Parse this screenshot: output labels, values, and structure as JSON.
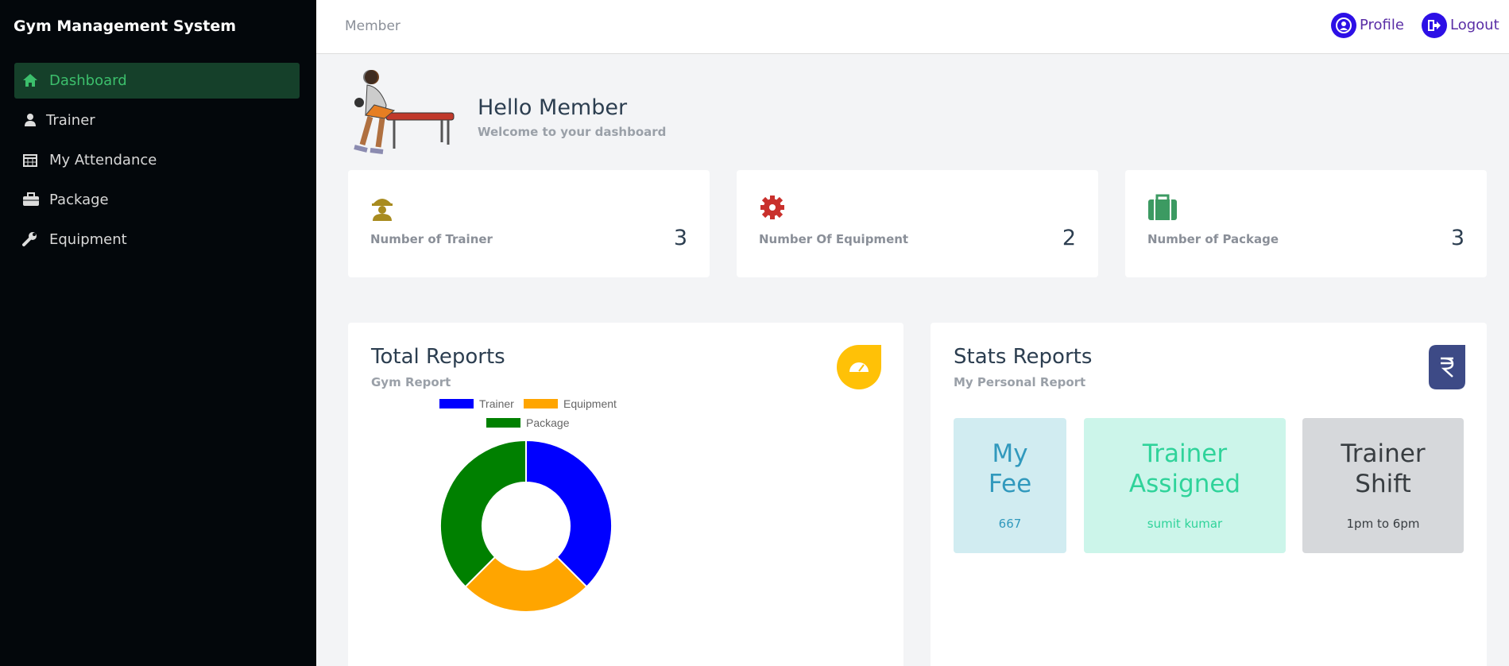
{
  "sidebar": {
    "title": "Gym Management System",
    "menu": [
      "Dashboard",
      "Trainer",
      "My Attendance",
      "Package",
      "Equipment"
    ]
  },
  "topbar": {
    "page": "Member",
    "links": [
      "Profile",
      "Logout"
    ]
  },
  "header": {
    "title": "Hello Member",
    "subtitle": "Welcome to your dashboard"
  },
  "cards": [
    {
      "label": "Number of Trainer",
      "value": "3"
    },
    {
      "label": "Number Of Equipment",
      "value": "2"
    },
    {
      "label": "Number of Package",
      "value": "3"
    }
  ],
  "chart_data": {
    "type": "doughnut",
    "title": "Total Reports",
    "subtitle": "Gym Report",
    "categories": [
      "Trainer",
      "Equipment",
      "Package"
    ],
    "values": [
      3,
      2,
      3
    ],
    "colors": [
      "#0000ff",
      "#ffa500",
      "#008000"
    ]
  },
  "stats": {
    "title": "Stats Reports",
    "subtitle": "My Personal Report",
    "items": [
      {
        "title": "My Fee",
        "value": "667"
      },
      {
        "title": "Trainer Assigned",
        "value": "sumit kumar"
      },
      {
        "title": "Trainer Shift",
        "value": "1pm to 6pm"
      }
    ]
  }
}
